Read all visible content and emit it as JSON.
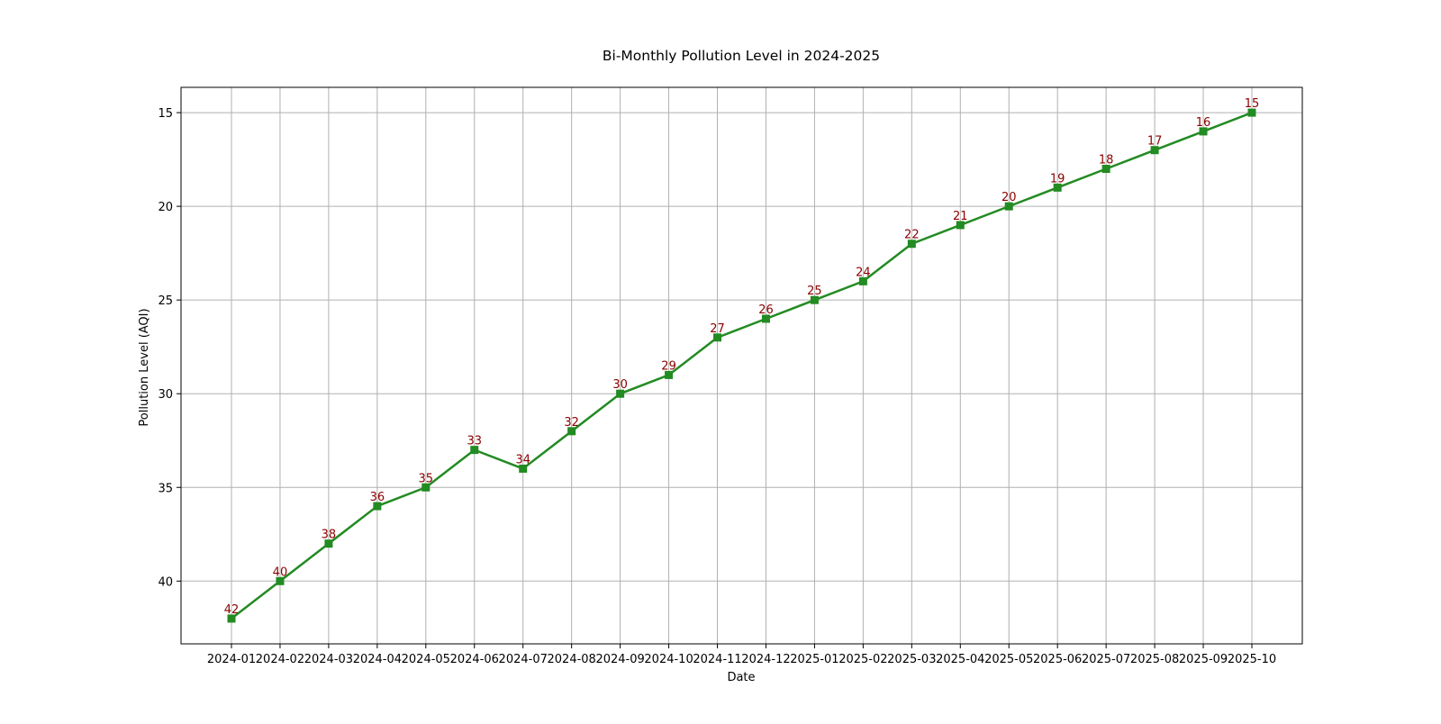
{
  "chart_data": {
    "type": "line",
    "title": "Bi-Monthly Pollution Level in 2024-2025",
    "xlabel": "Date",
    "ylabel": "Pollution Level (AQI)",
    "x": [
      "2024-01",
      "2024-02",
      "2024-03",
      "2024-04",
      "2024-05",
      "2024-06",
      "2024-07",
      "2024-08",
      "2024-09",
      "2024-10",
      "2024-11",
      "2024-12",
      "2025-01",
      "2025-02",
      "2025-03",
      "2025-04",
      "2025-05",
      "2025-06",
      "2025-07",
      "2025-08",
      "2025-09",
      "2025-10"
    ],
    "series": [
      {
        "values": [
          42,
          40,
          38,
          36,
          35,
          33,
          34,
          32,
          30,
          29,
          27,
          26,
          25,
          24,
          22,
          21,
          20,
          19,
          18,
          17,
          16,
          15
        ],
        "color": "#228b22",
        "marker": "square"
      }
    ],
    "data_labels": [
      "42",
      "40",
      "38",
      "36",
      "35",
      "33",
      "34",
      "32",
      "30",
      "29",
      "27",
      "26",
      "25",
      "24",
      "22",
      "21",
      "20",
      "19",
      "18",
      "17",
      "16",
      "15"
    ],
    "data_label_color": "#8b0000",
    "yticks": [
      "15",
      "20",
      "25",
      "30",
      "35",
      "40"
    ],
    "ylim": [
      43.35,
      13.65
    ],
    "y_inverted": true,
    "grid": true
  }
}
